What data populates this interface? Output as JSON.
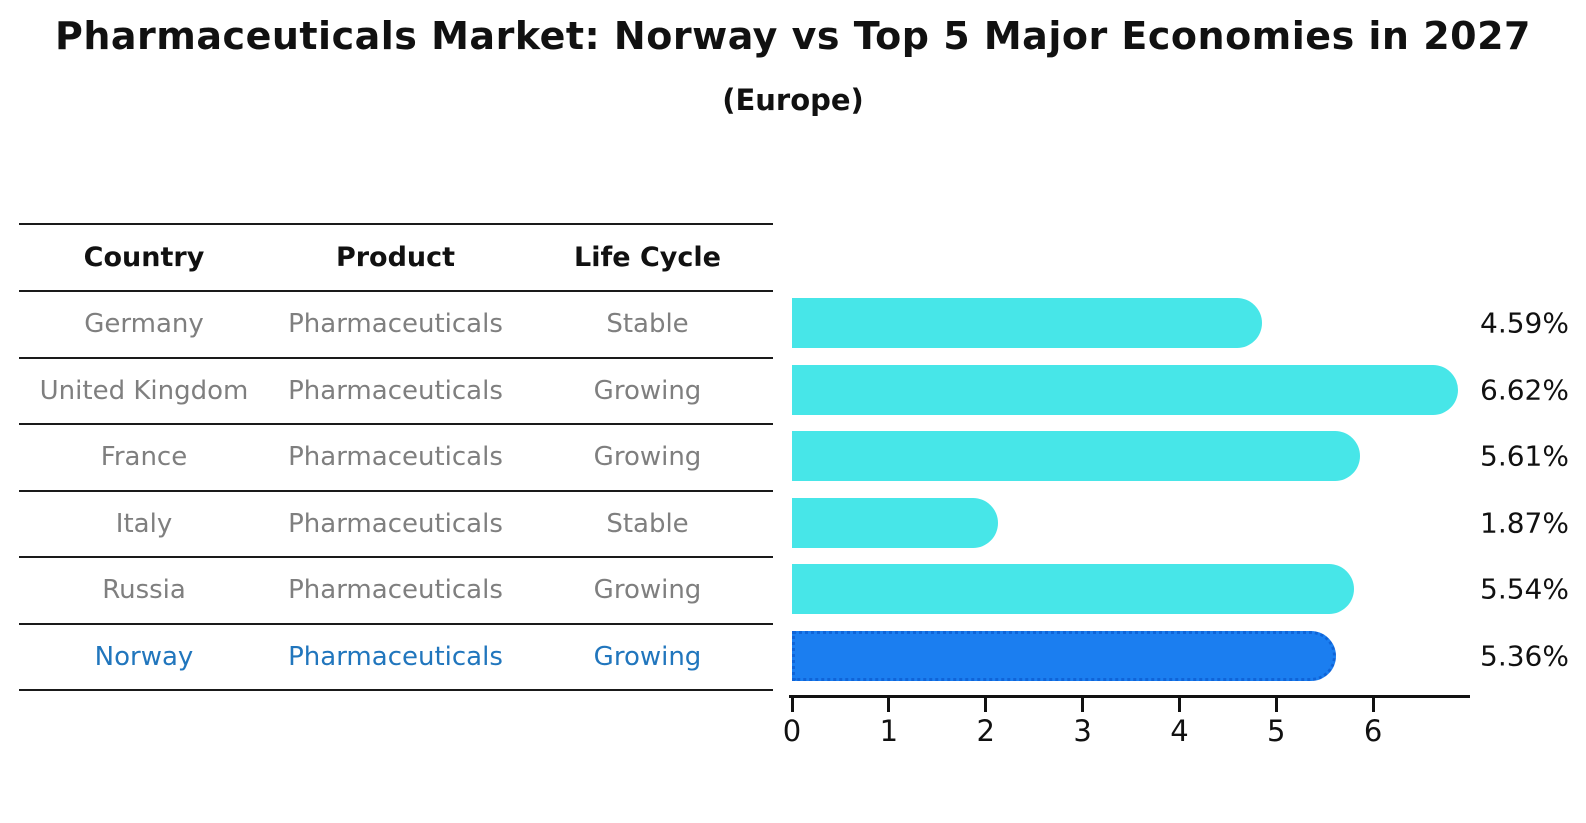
{
  "title": "Pharmaceuticals Market: Norway vs Top 5 Major Economies in 2027",
  "subtitle": "(Europe)",
  "table": {
    "headers": [
      "Country",
      "Product",
      "Life Cycle"
    ],
    "rows": [
      {
        "country": "Germany",
        "product": "Pharmaceuticals",
        "life_cycle": "Stable",
        "highlighted": false
      },
      {
        "country": "United Kingdom",
        "product": "Pharmaceuticals",
        "life_cycle": "Growing",
        "highlighted": false
      },
      {
        "country": "France",
        "product": "Pharmaceuticals",
        "life_cycle": "Growing",
        "highlighted": false
      },
      {
        "country": "Italy",
        "product": "Pharmaceuticals",
        "life_cycle": "Stable",
        "highlighted": false
      },
      {
        "country": "Russia",
        "product": "Pharmaceuticals",
        "life_cycle": "Growing",
        "highlighted": false
      },
      {
        "country": "Norway",
        "product": "Pharmaceuticals",
        "life_cycle": "Growing",
        "highlighted": true
      }
    ]
  },
  "chart_data": {
    "type": "bar",
    "orientation": "horizontal",
    "title": "Pharmaceuticals Market: Norway vs Top 5 Major Economies in 2027",
    "subtitle": "(Europe)",
    "categories": [
      "Germany",
      "United Kingdom",
      "France",
      "Italy",
      "Russia",
      "Norway"
    ],
    "values": [
      4.59,
      6.62,
      5.61,
      1.87,
      5.54,
      5.36
    ],
    "value_labels": [
      "4.59%",
      "6.62%",
      "5.61%",
      "1.87%",
      "5.54%",
      "5.36%"
    ],
    "highlight_index": 5,
    "xlim": [
      0,
      7
    ],
    "xticks": [
      "0",
      "1",
      "2",
      "3",
      "4",
      "5",
      "6"
    ],
    "grid": false,
    "legend_position": "none",
    "bar_color": "#47e6e8",
    "highlight_bar_color": "#1b7ef0",
    "highlight_border_color": "#0f64d8",
    "highlight_text_color": "#2176bd"
  },
  "colors": {
    "background": "#ffffff",
    "text": "#111111",
    "muted_text": "#7f7f7f",
    "rule_line": "#1a1a1a"
  }
}
